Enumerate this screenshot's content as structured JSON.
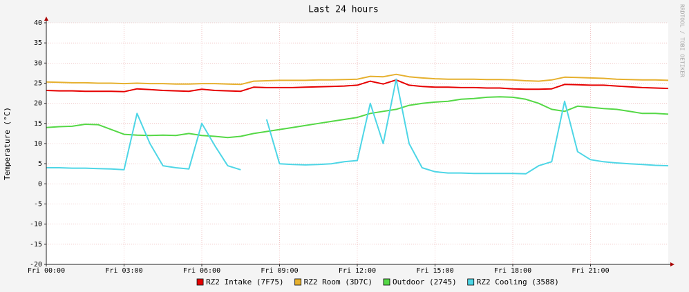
{
  "chart_data": {
    "type": "line",
    "title": "Last 24 hours",
    "y_label": "Temperature (°C)",
    "watermark": "RRDTOOL / TOBI OETIKER",
    "grid": true,
    "x": [
      0,
      0.5,
      1,
      1.5,
      2,
      2.5,
      3,
      3.5,
      4,
      4.5,
      5,
      5.5,
      6,
      6.5,
      7,
      7.5,
      8,
      8.5,
      9,
      9.5,
      10,
      10.5,
      11,
      11.5,
      12,
      12.5,
      13,
      13.5,
      14,
      14.5,
      15,
      15.5,
      16,
      16.5,
      17,
      17.5,
      18,
      18.5,
      19,
      19.5,
      20,
      20.5,
      21,
      21.5,
      22,
      22.5,
      23,
      23.5,
      24
    ],
    "xlim": [
      0,
      24
    ],
    "xticks": [
      {
        "value": 0,
        "label": "Fri 00:00"
      },
      {
        "value": 3,
        "label": "Fri 03:00"
      },
      {
        "value": 6,
        "label": "Fri 06:00"
      },
      {
        "value": 9,
        "label": "Fri 09:00"
      },
      {
        "value": 12,
        "label": "Fri 12:00"
      },
      {
        "value": 15,
        "label": "Fri 15:00"
      },
      {
        "value": 18,
        "label": "Fri 18:00"
      },
      {
        "value": 21,
        "label": "Fri 21:00"
      }
    ],
    "ylim": [
      -20,
      40
    ],
    "yticks": [
      -20,
      -15,
      -10,
      -5,
      0,
      5,
      10,
      15,
      20,
      25,
      30,
      35,
      40
    ],
    "series": [
      {
        "name": "RZ2 Intake (7F75)",
        "color": "#e60000",
        "values": [
          23.2,
          23.1,
          23.1,
          23.0,
          23.0,
          23.0,
          22.9,
          23.6,
          23.4,
          23.2,
          23.1,
          23.0,
          23.5,
          23.2,
          23.1,
          23.0,
          24.0,
          23.9,
          23.9,
          23.9,
          24.0,
          24.1,
          24.2,
          24.3,
          24.5,
          25.5,
          24.8,
          25.8,
          24.5,
          24.2,
          24.0,
          24.0,
          23.9,
          23.9,
          23.8,
          23.8,
          23.6,
          23.5,
          23.5,
          23.6,
          24.7,
          24.6,
          24.5,
          24.5,
          24.3,
          24.1,
          23.9,
          23.8,
          23.7
        ]
      },
      {
        "name": "RZ2 Room (3D7C)",
        "color": "#e6b02e",
        "values": [
          25.3,
          25.2,
          25.1,
          25.1,
          25.0,
          25.0,
          24.9,
          25.0,
          24.9,
          24.9,
          24.8,
          24.8,
          24.9,
          24.9,
          24.8,
          24.7,
          25.5,
          25.6,
          25.7,
          25.7,
          25.7,
          25.8,
          25.8,
          25.9,
          26.0,
          26.7,
          26.6,
          27.2,
          26.6,
          26.3,
          26.1,
          26.0,
          26.0,
          26.0,
          25.9,
          25.9,
          25.8,
          25.6,
          25.5,
          25.8,
          26.5,
          26.4,
          26.3,
          26.2,
          26.0,
          25.9,
          25.8,
          25.8,
          25.7
        ]
      },
      {
        "name": "Outdoor (2745)",
        "color": "#55d846",
        "values": [
          14.0,
          14.2,
          14.3,
          14.8,
          14.7,
          13.5,
          12.3,
          12.1,
          12.0,
          12.1,
          12.0,
          12.5,
          12.0,
          11.8,
          11.5,
          11.8,
          12.5,
          13.0,
          13.5,
          14.0,
          14.5,
          15.0,
          15.5,
          16.0,
          16.5,
          17.5,
          18.0,
          18.5,
          19.5,
          20.0,
          20.3,
          20.5,
          21.0,
          21.2,
          21.5,
          21.6,
          21.5,
          21.0,
          20.0,
          18.5,
          18.0,
          19.3,
          19.0,
          18.7,
          18.5,
          18.0,
          17.5,
          17.5,
          17.3
        ]
      },
      {
        "name": "RZ2 Cooling (3588)",
        "color": "#4ed6e6",
        "values": [
          4.0,
          4.0,
          3.9,
          3.9,
          3.8,
          3.7,
          3.5,
          17.5,
          10.0,
          4.5,
          4.0,
          3.7,
          15.0,
          9.5,
          4.5,
          3.5,
          null,
          16.0,
          5.0,
          4.8,
          4.7,
          4.8,
          5.0,
          5.5,
          5.8,
          20.0,
          10.0,
          26.0,
          10.0,
          4.0,
          3.0,
          2.7,
          2.7,
          2.6,
          2.6,
          2.6,
          2.6,
          2.5,
          4.5,
          5.5,
          20.5,
          8.0,
          6.0,
          5.5,
          5.2,
          5.0,
          4.8,
          4.6,
          4.5
        ]
      }
    ]
  }
}
